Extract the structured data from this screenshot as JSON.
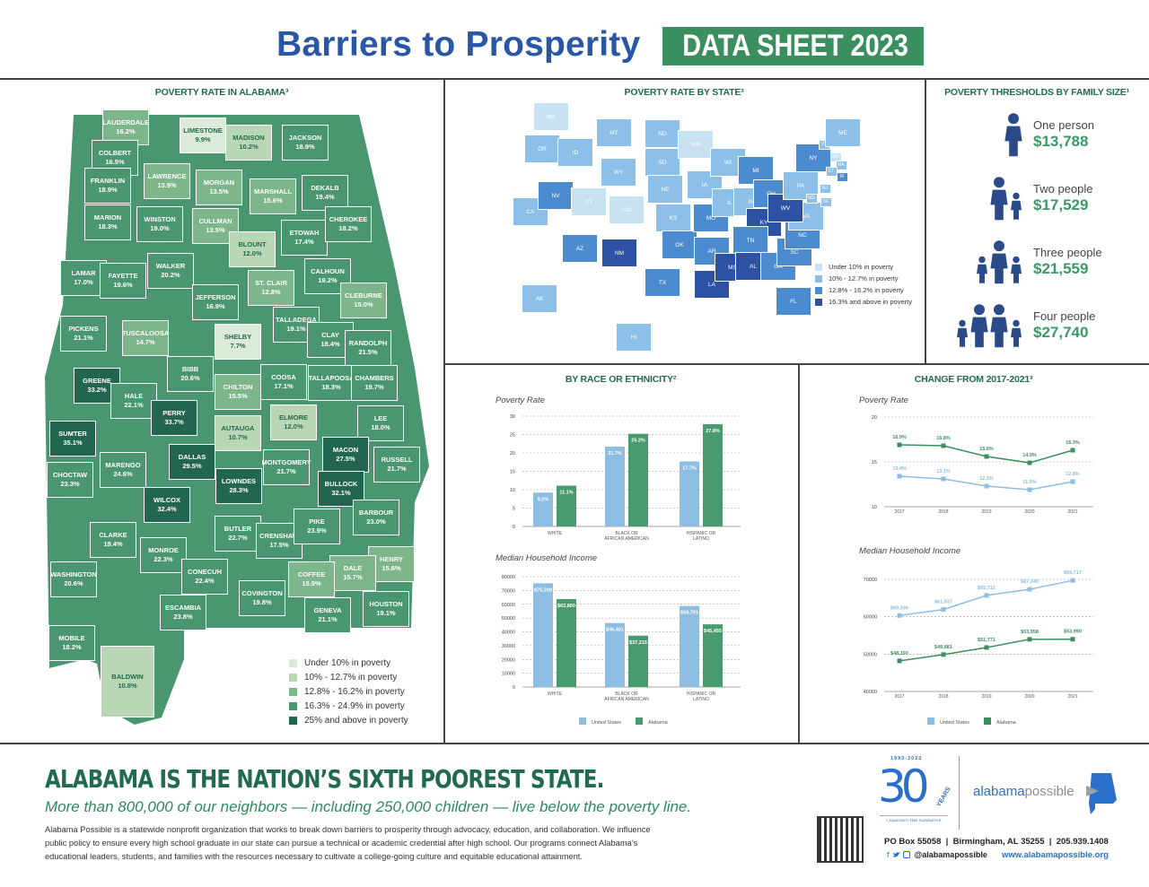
{
  "header": {
    "title": "Barriers to Prosperity",
    "badge": "DATA SHEET 2023"
  },
  "alabama_map": {
    "heading": "POVERTY RATE IN ALABAMA³",
    "tier_colors": [
      "#dcebd9",
      "#b9d7b4",
      "#7db68a",
      "#4a9670",
      "#23664f"
    ],
    "legend": [
      "Under 10% in poverty",
      "10% - 12.7% in poverty",
      "12.8% - 16.2% in poverty",
      "16.3% - 24.9% in poverty",
      "25% and above in poverty"
    ],
    "counties": [
      {
        "name": "LAUDERDALE",
        "rate": "16.2%"
      },
      {
        "name": "LIMESTONE",
        "rate": "9.9%"
      },
      {
        "name": "MADISON",
        "rate": "10.2%"
      },
      {
        "name": "JACKSON",
        "rate": "18.9%"
      },
      {
        "name": "COLBERT",
        "rate": "16.5%"
      },
      {
        "name": "FRANKLIN",
        "rate": "18.9%"
      },
      {
        "name": "LAWRENCE",
        "rate": "13.9%"
      },
      {
        "name": "MORGAN",
        "rate": "13.5%"
      },
      {
        "name": "MARSHALL",
        "rate": "15.6%"
      },
      {
        "name": "DEKALB",
        "rate": "19.4%"
      },
      {
        "name": "MARION",
        "rate": "18.3%"
      },
      {
        "name": "WINSTON",
        "rate": "19.0%"
      },
      {
        "name": "CULLMAN",
        "rate": "13.5%"
      },
      {
        "name": "BLOUNT",
        "rate": "12.0%"
      },
      {
        "name": "ETOWAH",
        "rate": "17.4%"
      },
      {
        "name": "CHEROKEE",
        "rate": "18.2%"
      },
      {
        "name": "LAMAR",
        "rate": "17.0%"
      },
      {
        "name": "FAYETTE",
        "rate": "19.6%"
      },
      {
        "name": "WALKER",
        "rate": "20.2%"
      },
      {
        "name": "JEFFERSON",
        "rate": "16.9%"
      },
      {
        "name": "ST. CLAIR",
        "rate": "12.8%"
      },
      {
        "name": "CALHOUN",
        "rate": "19.2%"
      },
      {
        "name": "CLEBURNE",
        "rate": "15.0%"
      },
      {
        "name": "PICKENS",
        "rate": "21.1%"
      },
      {
        "name": "TUSCALOOSA",
        "rate": "14.7%"
      },
      {
        "name": "SHELBY",
        "rate": "7.7%"
      },
      {
        "name": "TALLADEGA",
        "rate": "19.1%"
      },
      {
        "name": "CLAY",
        "rate": "18.4%"
      },
      {
        "name": "RANDOLPH",
        "rate": "21.5%"
      },
      {
        "name": "BIBB",
        "rate": "20.6%"
      },
      {
        "name": "COOSA",
        "rate": "17.1%"
      },
      {
        "name": "TALLAPOOSA",
        "rate": "18.3%"
      },
      {
        "name": "CHAMBERS",
        "rate": "19.7%"
      },
      {
        "name": "GREENE",
        "rate": "33.2%"
      },
      {
        "name": "HALE",
        "rate": "22.1%"
      },
      {
        "name": "CHILTON",
        "rate": "15.5%"
      },
      {
        "name": "PERRY",
        "rate": "33.7%"
      },
      {
        "name": "ELMORE",
        "rate": "12.0%"
      },
      {
        "name": "LEE",
        "rate": "18.0%"
      },
      {
        "name": "AUTAUGA",
        "rate": "10.7%"
      },
      {
        "name": "SUMTER",
        "rate": "35.1%"
      },
      {
        "name": "MACON",
        "rate": "27.5%"
      },
      {
        "name": "DALLAS",
        "rate": "29.5%"
      },
      {
        "name": "RUSSELL",
        "rate": "21.7%"
      },
      {
        "name": "MARENGO",
        "rate": "24.6%"
      },
      {
        "name": "MONTGOMERY",
        "rate": "21.7%"
      },
      {
        "name": "LOWNDES",
        "rate": "28.3%"
      },
      {
        "name": "BULLOCK",
        "rate": "32.1%"
      },
      {
        "name": "CHOCTAW",
        "rate": "23.3%"
      },
      {
        "name": "WILCOX",
        "rate": "32.4%"
      },
      {
        "name": "BARBOUR",
        "rate": "23.0%"
      },
      {
        "name": "BUTLER",
        "rate": "22.7%"
      },
      {
        "name": "CRENSHAW",
        "rate": "17.5%"
      },
      {
        "name": "PIKE",
        "rate": "23.9%"
      },
      {
        "name": "CLARKE",
        "rate": "19.4%"
      },
      {
        "name": "MONROE",
        "rate": "22.3%"
      },
      {
        "name": "HENRY",
        "rate": "15.6%"
      },
      {
        "name": "WASHINGTON",
        "rate": "20.6%"
      },
      {
        "name": "CONECUH",
        "rate": "22.4%"
      },
      {
        "name": "DALE",
        "rate": "15.7%"
      },
      {
        "name": "COFFEE",
        "rate": "15.9%"
      },
      {
        "name": "COVINGTON",
        "rate": "19.8%"
      },
      {
        "name": "HOUSTON",
        "rate": "19.1%"
      },
      {
        "name": "ESCAMBIA",
        "rate": "23.8%"
      },
      {
        "name": "GENEVA",
        "rate": "21.1%"
      },
      {
        "name": "MOBILE",
        "rate": "18.2%"
      },
      {
        "name": "BALDWIN",
        "rate": "10.8%"
      }
    ]
  },
  "us_map": {
    "heading": "POVERTY RATE BY STATE³",
    "tier_colors": [
      "#c6e2f3",
      "#8dc0e8",
      "#4d8bd0",
      "#2d52a3"
    ],
    "legend": [
      "Under 10% in poverty",
      "10% - 12.7% in poverty",
      "12.8% - 16.2% in poverty",
      "16.3% and above in poverty"
    ],
    "states": [
      {
        "abbr": "WA",
        "tier": 0
      },
      {
        "abbr": "OR",
        "tier": 1
      },
      {
        "abbr": "CA",
        "tier": 1
      },
      {
        "abbr": "ID",
        "tier": 1
      },
      {
        "abbr": "NV",
        "tier": 2
      },
      {
        "abbr": "MT",
        "tier": 1
      },
      {
        "abbr": "WY",
        "tier": 1
      },
      {
        "abbr": "UT",
        "tier": 0
      },
      {
        "abbr": "CO",
        "tier": 0
      },
      {
        "abbr": "AZ",
        "tier": 2
      },
      {
        "abbr": "NM",
        "tier": 3
      },
      {
        "abbr": "ND",
        "tier": 1
      },
      {
        "abbr": "SD",
        "tier": 1
      },
      {
        "abbr": "NE",
        "tier": 1
      },
      {
        "abbr": "KS",
        "tier": 1
      },
      {
        "abbr": "OK",
        "tier": 2
      },
      {
        "abbr": "TX",
        "tier": 2
      },
      {
        "abbr": "MN",
        "tier": 0
      },
      {
        "abbr": "IA",
        "tier": 1
      },
      {
        "abbr": "MO",
        "tier": 2
      },
      {
        "abbr": "AR",
        "tier": 2
      },
      {
        "abbr": "LA",
        "tier": 3
      },
      {
        "abbr": "WI",
        "tier": 1
      },
      {
        "abbr": "IL",
        "tier": 1
      },
      {
        "abbr": "MI",
        "tier": 2
      },
      {
        "abbr": "IN",
        "tier": 1
      },
      {
        "abbr": "OH",
        "tier": 2
      },
      {
        "abbr": "KY",
        "tier": 3
      },
      {
        "abbr": "TN",
        "tier": 2
      },
      {
        "abbr": "MS",
        "tier": 3
      },
      {
        "abbr": "AL",
        "tier": 3
      },
      {
        "abbr": "GA",
        "tier": 2
      },
      {
        "abbr": "FL",
        "tier": 2
      },
      {
        "abbr": "SC",
        "tier": 2
      },
      {
        "abbr": "NC",
        "tier": 2
      },
      {
        "abbr": "VA",
        "tier": 1
      },
      {
        "abbr": "WV",
        "tier": 3
      },
      {
        "abbr": "PA",
        "tier": 1
      },
      {
        "abbr": "NY",
        "tier": 2
      },
      {
        "abbr": "VT",
        "tier": 1
      },
      {
        "abbr": "NH",
        "tier": 0
      },
      {
        "abbr": "ME",
        "tier": 1
      },
      {
        "abbr": "MA",
        "tier": 1
      },
      {
        "abbr": "CT",
        "tier": 1
      },
      {
        "abbr": "RI",
        "tier": 2
      },
      {
        "abbr": "NJ",
        "tier": 1
      },
      {
        "abbr": "MD",
        "tier": 1
      },
      {
        "abbr": "DE",
        "tier": 1
      },
      {
        "abbr": "AK",
        "tier": 1
      },
      {
        "abbr": "HI",
        "tier": 1
      }
    ]
  },
  "thresholds": {
    "heading": "POVERTY THRESHOLDS BY FAMILY SIZE¹",
    "items": [
      {
        "label": "One person",
        "value": "$13,788",
        "adults": 1,
        "children": 0
      },
      {
        "label": "Two people",
        "value": "$17,529",
        "adults": 1,
        "children": 1
      },
      {
        "label": "Three people",
        "value": "$21,559",
        "adults": 1,
        "children": 2
      },
      {
        "label": "Four people",
        "value": "$27,740",
        "adults": 2,
        "children": 2
      }
    ],
    "icon_color": "#2b4a8a"
  },
  "chart_data": [
    {
      "type": "bar",
      "title": "BY RACE OR ETHNICITY²",
      "subtitle": "Poverty Rate",
      "categories": [
        "WHITE",
        "BLACK OR AFRICAN AMERICAN",
        "HISPANIC OR LATINO"
      ],
      "series": [
        {
          "name": "United States",
          "values": [
            9.2,
            21.7,
            17.7
          ],
          "labels": [
            "9.2%",
            "21.7%",
            "17.7%"
          ],
          "color": "#8dbde0"
        },
        {
          "name": "Alabama",
          "values": [
            11.1,
            25.2,
            27.8
          ],
          "labels": [
            "11.1%",
            "25.2%",
            "27.8%"
          ],
          "color": "#4a9a70"
        }
      ],
      "ylim": [
        0,
        30
      ],
      "yticks": [
        0,
        5,
        10,
        15,
        20,
        25,
        30
      ],
      "grid": true
    },
    {
      "type": "bar",
      "subtitle": "Median Household Income",
      "categories": [
        "WHITE",
        "BLACK OR AFRICAN AMERICAN",
        "HISPANIC OR LATINO"
      ],
      "series": [
        {
          "name": "United States",
          "values": [
            75208,
            46401,
            58791
          ],
          "labels": [
            "$75,208",
            "$46,401",
            "$58,791"
          ],
          "color": "#8dbde0"
        },
        {
          "name": "Alabama",
          "values": [
            63800,
            37215,
            45455
          ],
          "labels": [
            "$63,800",
            "$37,215",
            "$45,455"
          ],
          "color": "#4a9a70"
        }
      ],
      "ylim": [
        0,
        80000
      ],
      "yticks": [
        0,
        10000,
        20000,
        30000,
        40000,
        50000,
        60000,
        70000,
        80000
      ],
      "grid": true,
      "legend": [
        "United States",
        "Alabama"
      ],
      "legend_position": "bottom"
    },
    {
      "type": "line",
      "title": "CHANGE FROM 2017-2021³",
      "subtitle": "Poverty Rate",
      "x": [
        "2017",
        "2018",
        "2019",
        "2020",
        "2021"
      ],
      "series": [
        {
          "name": "Alabama",
          "values": [
            16.9,
            16.8,
            15.6,
            14.9,
            16.3
          ],
          "labels": [
            "16.9%",
            "16.8%",
            "15.6%",
            "14.9%",
            "16.3%"
          ],
          "color": "#3a8f5f"
        },
        {
          "name": "United States",
          "values": [
            13.4,
            13.1,
            12.3,
            11.9,
            12.8
          ],
          "labels": [
            "13.4%",
            "13.1%",
            "12.3%",
            "11.9%",
            "12.8%"
          ],
          "color": "#8dbde0"
        }
      ],
      "ylim": [
        10,
        20
      ],
      "yticks": [
        10,
        15,
        20
      ],
      "grid": true
    },
    {
      "type": "line",
      "subtitle": "Median Household Income",
      "x": [
        "2017",
        "2018",
        "2019",
        "2020",
        "2021"
      ],
      "series": [
        {
          "name": "United States",
          "values": [
            60336,
            61937,
            65712,
            67340,
            69717
          ],
          "labels": [
            "$60,336",
            "$61,937",
            "$65,712",
            "$67,340",
            "$69,717"
          ],
          "color": "#8dbde0"
        },
        {
          "name": "Alabama",
          "values": [
            48193,
            49881,
            51771,
            53958,
            53990
          ],
          "labels": [
            "$48,193",
            "$49,881",
            "$51,771",
            "$53,958",
            "$53,990"
          ],
          "color": "#3a8f5f"
        }
      ],
      "ylim": [
        40000,
        70000
      ],
      "yticks": [
        40000,
        50000,
        60000,
        70000
      ],
      "grid": true,
      "legend": [
        "United States",
        "Alabama"
      ],
      "legend_position": "bottom"
    }
  ],
  "footer": {
    "headline": "ALABAMA IS THE NATION’S SIXTH POOREST STATE.",
    "subhead": "More than 800,000 of our neighbors — including 250,000 children — live below the poverty line.",
    "paragraph": "Alabama Possible is a statewide nonprofit organization that works to break down barriers to prosperity through advocacy, education, and collaboration. We influence public policy to ensure every high school graduate in our state can pursue a technical or academic credential after high school. Our programs connect Alabama’s educational leaders, students, and families with the resources necessary to cultivate a college-going culture and equitable educational attainment.",
    "anniversary_logo": {
      "years_range": "1993-2023",
      "number": "30",
      "word": "YEARS",
      "tagline": "CHANGING THE NARRATIVE"
    },
    "brand_logo": {
      "part1": "alabama",
      "part2": "possible"
    },
    "address": "PO Box 55058  |  Birmingham, AL 35255  |  205.939.1408",
    "social_handle": "@alabamapossible",
    "website": "www.alabamapossible.org"
  }
}
